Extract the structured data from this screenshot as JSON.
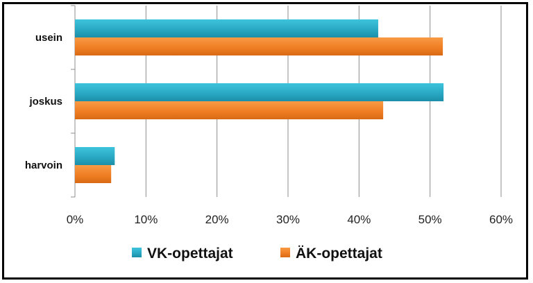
{
  "chart_data": {
    "type": "bar",
    "orientation": "horizontal",
    "categories": [
      "usein",
      "joskus",
      "harvoin"
    ],
    "series": [
      {
        "name": "VK-opettajat",
        "values": [
          42.7,
          51.9,
          5.6
        ]
      },
      {
        "name": "ÄK-opettajat",
        "values": [
          51.8,
          43.4,
          5.1
        ]
      }
    ],
    "xlim": [
      0,
      60
    ],
    "xticks": [
      "0%",
      "10%",
      "20%",
      "30%",
      "40%",
      "50%",
      "60%"
    ],
    "grid": "vertical",
    "legend_position": "bottom",
    "colors": {
      "VK-opettajat": "#2aa9c4",
      "ÄK-opettajat": "#f07f24"
    }
  }
}
